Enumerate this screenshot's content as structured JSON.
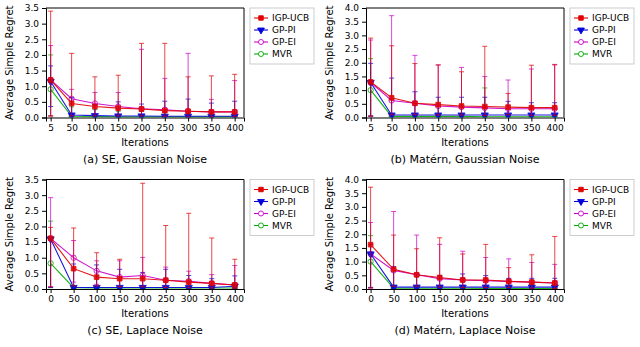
{
  "chart_data": [
    {
      "type": "line",
      "title": "(a) SE, Gaussian Noise",
      "xlabel": "Iterations",
      "ylabel": "Average Simple Regret",
      "x": [
        5,
        50,
        100,
        150,
        200,
        250,
        300,
        350,
        400
      ],
      "xlim": [
        -5,
        420
      ],
      "xticks": [
        5,
        50,
        100,
        150,
        200,
        250,
        300,
        350,
        400
      ],
      "ylim": [
        0.0,
        3.5
      ],
      "yticks": [
        {
          "value": 0.0,
          "label": "0.0"
        },
        0.5,
        {
          "value": 1.0,
          "label": "1.0"
        },
        1.5,
        {
          "value": 2.0,
          "label": "2.0"
        },
        2.5,
        {
          "value": 3.0,
          "label": "3.0"
        },
        3.5
      ],
      "grid": false,
      "legend": "upper right",
      "series": [
        {
          "name": "IGP-UCB",
          "color": "#e00000",
          "marker": "square",
          "values": [
            1.2,
            0.45,
            0.35,
            0.3,
            0.27,
            0.22,
            0.2,
            0.18,
            0.18
          ],
          "error_upper": [
            2.2,
            1.6,
            0.95,
            1.05,
            2.1,
            2.15,
            1.1,
            1.15,
            1.2
          ],
          "error_lower": [
            1.15,
            0.4,
            0.3,
            0.25,
            0.22,
            0.18,
            0.18,
            0.16,
            0.16
          ]
        },
        {
          "name": "GP-PI",
          "color": "#0000dd",
          "marker": "triangle-down",
          "values": [
            1.15,
            0.08,
            0.06,
            0.05,
            0.05,
            0.04,
            0.04,
            0.04,
            0.04
          ],
          "error_upper": [
            0.5,
            0.55,
            0.35,
            0.45,
            0.38,
            0.48,
            0.55,
            0.42,
            0.48
          ],
          "error_lower": [
            0.8,
            0.06,
            0.04,
            0.04,
            0.04,
            0.03,
            0.03,
            0.03,
            0.03
          ]
        },
        {
          "name": "GP-EI",
          "color": "#cc00cc",
          "marker": "circle-open",
          "values": [
            1.2,
            0.6,
            0.45,
            0.35,
            0.28,
            0.25,
            0.2,
            0.18,
            0.18
          ],
          "error_upper": [
            1.1,
            0.3,
            0.35,
            0.45,
            1.9,
            1.0,
            1.85,
            0.4,
            1.0
          ],
          "error_lower": [
            1.15,
            0.5,
            0.35,
            0.28,
            0.23,
            0.2,
            0.18,
            0.15,
            0.15
          ]
        },
        {
          "name": "MVR",
          "color": "#00aa00",
          "marker": "circle-open",
          "values": [
            0.9,
            0.04,
            0.03,
            0.02,
            0.02,
            0.02,
            0.02,
            0.02,
            0.02
          ],
          "error_upper": [
            1.1,
            0.3,
            0.22,
            0.18,
            0.18,
            0.15,
            0.13,
            0.13,
            0.13
          ],
          "error_lower": [
            0.85,
            0.03,
            0.02,
            0.02,
            0.02,
            0.01,
            0.01,
            0.01,
            0.01
          ]
        }
      ]
    },
    {
      "type": "line",
      "title": "(b) Matérn, Gaussian Noise",
      "xlabel": "Iterations",
      "ylabel": "Average Simple Regret",
      "x": [
        5,
        50,
        100,
        150,
        200,
        250,
        300,
        350,
        400
      ],
      "xlim": [
        -5,
        420
      ],
      "xticks": [
        5,
        50,
        100,
        150,
        200,
        250,
        300,
        350,
        400
      ],
      "ylim": [
        0.0,
        4.0
      ],
      "yticks": [
        {
          "value": 0.0,
          "label": "0.0"
        },
        0.5,
        {
          "value": 1.0,
          "label": "1.0"
        },
        1.5,
        {
          "value": 2.0,
          "label": "2.0"
        },
        2.5,
        {
          "value": 3.0,
          "label": "3.0"
        },
        3.5,
        {
          "value": 4.0,
          "label": "4.0"
        }
      ],
      "grid": false,
      "legend": "upper right",
      "series": [
        {
          "name": "IGP-UCB",
          "color": "#e00000",
          "marker": "square",
          "values": [
            1.3,
            0.72,
            0.52,
            0.47,
            0.42,
            0.4,
            0.38,
            0.36,
            0.36
          ],
          "error_upper": [
            1.6,
            1.9,
            1.45,
            1.45,
            1.25,
            2.2,
            0.5,
            1.55,
            1.58
          ],
          "error_lower": [
            1.25,
            0.62,
            0.42,
            0.38,
            0.33,
            0.33,
            0.28,
            0.28,
            0.28
          ]
        },
        {
          "name": "GP-PI",
          "color": "#0000dd",
          "marker": "triangle-down",
          "values": [
            1.28,
            0.09,
            0.09,
            0.09,
            0.09,
            0.09,
            0.09,
            0.09,
            0.09
          ],
          "error_upper": [
            0.7,
            1.35,
            0.85,
            0.65,
            0.65,
            0.65,
            0.5,
            0.45,
            0.45
          ],
          "error_lower": [
            1.22,
            0.07,
            0.07,
            0.07,
            0.07,
            0.07,
            0.07,
            0.07,
            0.07
          ]
        },
        {
          "name": "GP-EI",
          "color": "#cc00cc",
          "marker": "circle-open",
          "values": [
            1.28,
            0.62,
            0.52,
            0.42,
            0.38,
            0.35,
            0.32,
            0.32,
            0.32
          ],
          "error_upper": [
            1.55,
            3.1,
            1.75,
            1.5,
            1.45,
            1.15,
            1.05,
            1.45,
            1.6
          ],
          "error_lower": [
            1.25,
            0.52,
            0.42,
            0.32,
            0.28,
            0.28,
            0.25,
            0.25,
            0.25
          ]
        },
        {
          "name": "MVR",
          "color": "#00aa00",
          "marker": "circle-open",
          "values": [
            1.0,
            0.04,
            0.04,
            0.04,
            0.04,
            0.03,
            0.03,
            0.03,
            0.03
          ],
          "error_upper": [
            1.15,
            0.08,
            0.08,
            0.08,
            0.08,
            1.05,
            0.08,
            0.08,
            0.08
          ],
          "error_lower": [
            0.95,
            0.03,
            0.03,
            0.03,
            0.03,
            0.02,
            0.02,
            0.02,
            0.02
          ]
        }
      ]
    },
    {
      "type": "line",
      "title": "(c) SE, Laplace Noise",
      "xlabel": "Iterations",
      "ylabel": "Average Simple Regret",
      "x": [
        0,
        50,
        100,
        150,
        200,
        250,
        300,
        350,
        400
      ],
      "xlim": [
        -10,
        420
      ],
      "xticks": [
        0,
        50,
        100,
        150,
        200,
        250,
        300,
        350,
        400
      ],
      "ylim": [
        0.0,
        3.5
      ],
      "yticks": [
        {
          "value": 0.0,
          "label": "0.0"
        },
        0.5,
        {
          "value": 1.0,
          "label": "1.0"
        },
        1.5,
        {
          "value": 2.0,
          "label": "2.0"
        },
        2.5,
        {
          "value": 3.0,
          "label": "3.0"
        },
        3.5
      ],
      "grid": false,
      "legend": "upper right",
      "series": [
        {
          "name": "IGP-UCB",
          "color": "#e00000",
          "marker": "square",
          "values": [
            1.62,
            0.65,
            0.38,
            0.33,
            0.33,
            0.28,
            0.22,
            0.18,
            0.13
          ],
          "error_upper": [
            0.35,
            1.3,
            0.78,
            0.62,
            3.05,
            1.75,
            2.2,
            1.45,
            0.82
          ],
          "error_lower": [
            1.55,
            0.55,
            0.28,
            0.26,
            0.26,
            0.23,
            0.18,
            0.15,
            0.11
          ]
        },
        {
          "name": "GP-PI",
          "color": "#0000dd",
          "marker": "triangle-down",
          "values": [
            1.6,
            0.05,
            0.05,
            0.05,
            0.05,
            0.05,
            0.05,
            0.05,
            0.09
          ],
          "error_upper": [
            0.0,
            0.75,
            0.72,
            0.58,
            0.48,
            0.58,
            0.38,
            0.28,
            0.33
          ],
          "error_lower": [
            1.55,
            0.03,
            0.03,
            0.03,
            0.03,
            0.03,
            0.03,
            0.03,
            0.07
          ]
        },
        {
          "name": "GP-EI",
          "color": "#cc00cc",
          "marker": "circle-open",
          "values": [
            1.62,
            1.0,
            0.58,
            0.38,
            0.43,
            0.28,
            0.25,
            0.18,
            0.13
          ],
          "error_upper": [
            1.3,
            0.55,
            0.32,
            0.52,
            0.58,
            0.42,
            0.32,
            0.28,
            0.62
          ],
          "error_lower": [
            1.55,
            0.78,
            0.43,
            0.3,
            0.33,
            0.23,
            0.2,
            0.15,
            0.1
          ]
        },
        {
          "name": "MVR",
          "color": "#00aa00",
          "marker": "circle-open",
          "values": [
            0.82,
            0.04,
            0.03,
            0.03,
            0.03,
            0.03,
            0.03,
            0.03,
            0.03
          ],
          "error_upper": [
            1.35,
            0.0,
            0.0,
            0.0,
            0.0,
            0.0,
            0.0,
            0.0,
            0.0
          ],
          "error_lower": [
            0.78,
            0.03,
            0.02,
            0.02,
            0.02,
            0.02,
            0.02,
            0.02,
            0.02
          ]
        }
      ]
    },
    {
      "type": "line",
      "title": "(d) Matérn, Laplace Noise",
      "xlabel": "Iterations",
      "ylabel": "Average Simple Regret",
      "x": [
        0,
        50,
        100,
        150,
        200,
        250,
        300,
        350,
        400
      ],
      "xlim": [
        -10,
        420
      ],
      "xticks": [
        0,
        50,
        100,
        150,
        200,
        250,
        300,
        350,
        400
      ],
      "ylim": [
        0.0,
        4.0
      ],
      "yticks": [
        {
          "value": 0.0,
          "label": "0.0"
        },
        0.5,
        {
          "value": 1.0,
          "label": "1.0"
        },
        1.5,
        {
          "value": 2.0,
          "label": "2.0"
        },
        2.5,
        {
          "value": 3.0,
          "label": "3.0"
        },
        3.5,
        {
          "value": 4.0,
          "label": "4.0"
        }
      ],
      "grid": false,
      "legend": "upper right",
      "series": [
        {
          "name": "IGP-UCB",
          "color": "#e00000",
          "marker": "square",
          "values": [
            1.62,
            0.72,
            0.52,
            0.42,
            0.33,
            0.33,
            0.28,
            0.25,
            0.22
          ],
          "error_upper": [
            2.1,
            1.25,
            0.95,
            1.45,
            0.95,
            1.3,
            0.5,
            1.0,
            1.7
          ],
          "error_lower": [
            1.58,
            0.62,
            0.42,
            0.35,
            0.28,
            0.28,
            0.23,
            0.22,
            0.2
          ]
        },
        {
          "name": "GP-PI",
          "color": "#0000dd",
          "marker": "triangle-down",
          "values": [
            1.28,
            0.07,
            0.07,
            0.07,
            0.07,
            0.07,
            0.07,
            0.07,
            0.07
          ],
          "error_upper": [
            0.35,
            0.75,
            0.48,
            0.42,
            0.48,
            0.42,
            0.32,
            0.32,
            0.32
          ],
          "error_lower": [
            1.22,
            0.05,
            0.05,
            0.05,
            0.05,
            0.05,
            0.05,
            0.05,
            0.05
          ]
        },
        {
          "name": "GP-EI",
          "color": "#cc00cc",
          "marker": "circle-open",
          "values": [
            1.28,
            0.68,
            0.52,
            0.38,
            0.33,
            0.3,
            0.28,
            0.25,
            0.22
          ],
          "error_upper": [
            1.15,
            2.15,
            1.45,
            1.25,
            1.05,
            0.85,
            0.82,
            0.72,
            0.68
          ],
          "error_lower": [
            1.25,
            0.58,
            0.42,
            0.31,
            0.28,
            0.25,
            0.23,
            0.22,
            0.2
          ]
        },
        {
          "name": "MVR",
          "color": "#00aa00",
          "marker": "circle-open",
          "values": [
            1.0,
            0.03,
            0.03,
            0.03,
            0.03,
            0.02,
            0.02,
            0.02,
            0.02
          ],
          "error_upper": [
            0.95,
            0.08,
            0.08,
            0.08,
            0.08,
            0.08,
            0.08,
            0.08,
            0.08
          ],
          "error_lower": [
            0.95,
            0.02,
            0.02,
            0.02,
            0.02,
            0.02,
            0.02,
            0.02,
            0.02
          ]
        }
      ]
    }
  ]
}
